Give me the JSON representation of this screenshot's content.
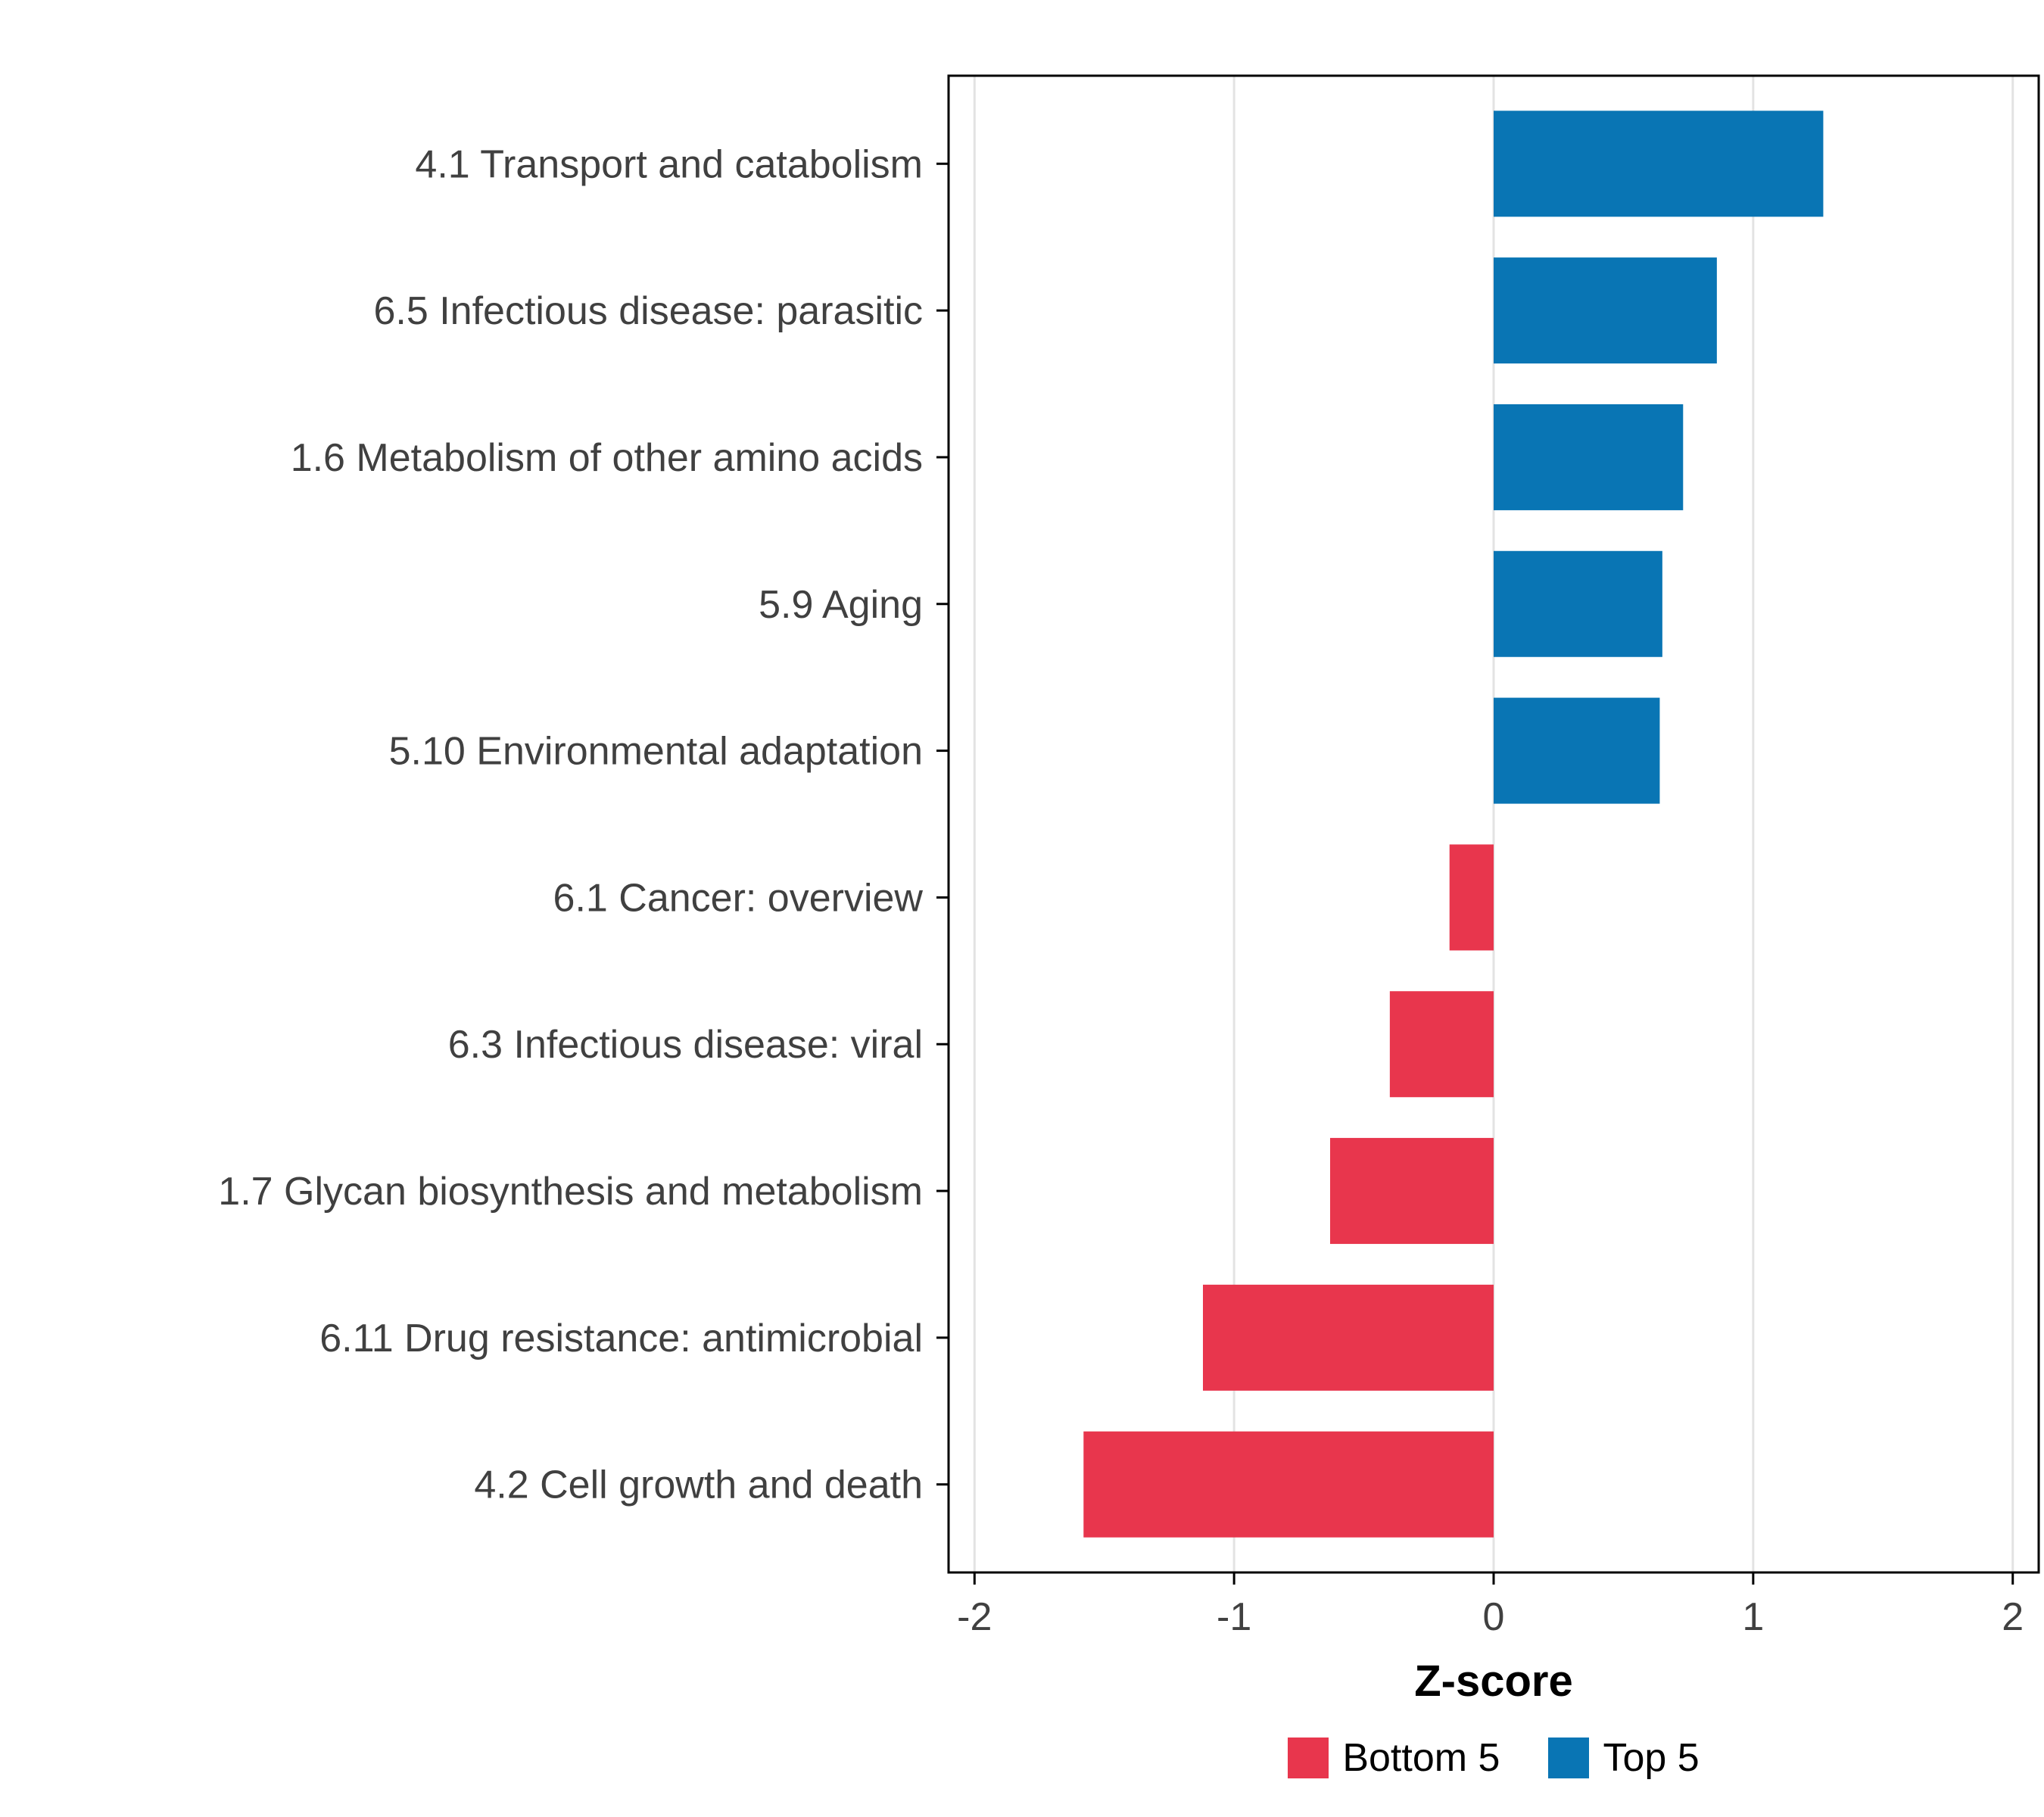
{
  "chart_data": {
    "type": "bar",
    "orientation": "horizontal",
    "title": "",
    "xlabel": "Z-score",
    "ylabel": "",
    "xlim": [
      -2.1,
      2.1
    ],
    "xticks": [
      -2,
      -1,
      0,
      1,
      2
    ],
    "grid": "vertical-major",
    "legend_position": "bottom",
    "categories": [
      "4.1 Transport and catabolism",
      "6.5 Infectious disease: parasitic",
      "1.6 Metabolism of other amino acids",
      "5.9 Aging",
      "5.10 Environmental adaptation",
      "6.1 Cancer: overview",
      "6.3 Infectious disease: viral",
      "1.7 Glycan biosynthesis and metabolism",
      "6.11 Drug resistance: antimicrobial",
      "4.2 Cell growth and death"
    ],
    "values": [
      1.27,
      0.86,
      0.73,
      0.65,
      0.64,
      -0.17,
      -0.4,
      -0.63,
      -1.12,
      -1.58
    ],
    "groups": [
      "Top 5",
      "Top 5",
      "Top 5",
      "Top 5",
      "Top 5",
      "Bottom 5",
      "Bottom 5",
      "Bottom 5",
      "Bottom 5",
      "Bottom 5"
    ],
    "colors": {
      "Bottom 5": "#E8364D",
      "Top 5": "#0975B4"
    },
    "axis_text_color": "#404040",
    "gridline_color": "#E3E3E3",
    "legend": {
      "items": [
        {
          "label": "Bottom 5",
          "color": "#E8364D"
        },
        {
          "label": "Top 5",
          "color": "#0975B4"
        }
      ]
    }
  }
}
